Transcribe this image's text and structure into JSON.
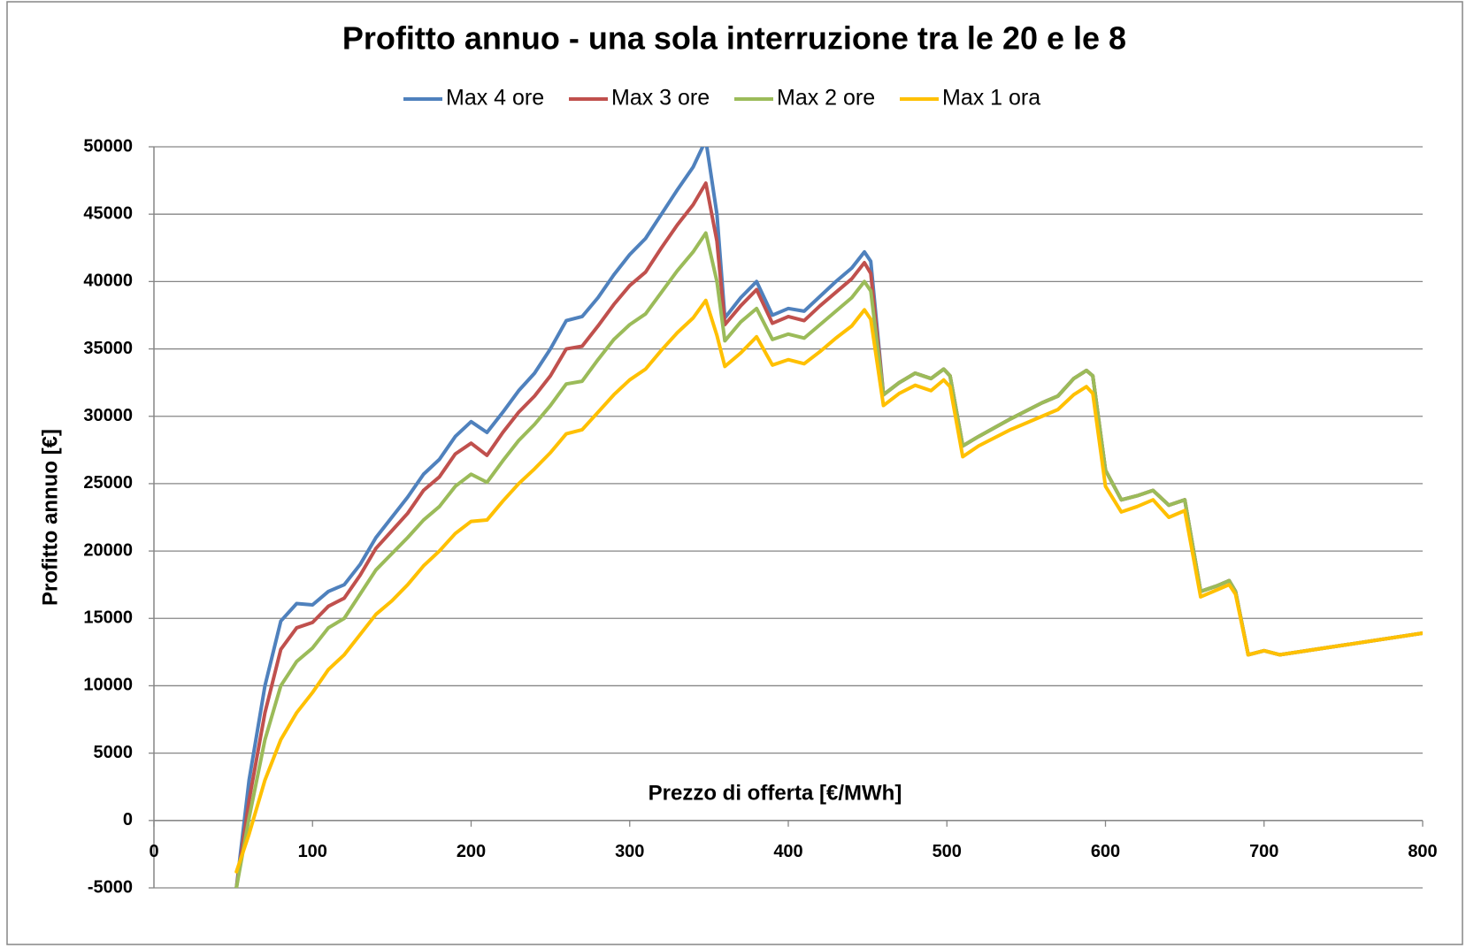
{
  "chart_data": {
    "type": "line",
    "title": "Profitto annuo - una sola interruzione tra le 20 e le 8",
    "x_label": "Prezzo di offerta [€/MWh]",
    "y_label": "Profitto annuo [€]",
    "xlim": [
      0,
      800
    ],
    "xticks": [
      0,
      100,
      200,
      300,
      400,
      500,
      600,
      700,
      800
    ],
    "ylim": [
      -5000,
      50000
    ],
    "yticks": [
      -5000,
      0,
      5000,
      10000,
      15000,
      20000,
      25000,
      30000,
      35000,
      40000,
      45000,
      50000
    ],
    "grid": true,
    "legend": "top",
    "x": [
      52,
      60,
      70,
      80,
      90,
      100,
      110,
      120,
      130,
      140,
      150,
      160,
      170,
      180,
      190,
      200,
      210,
      220,
      230,
      240,
      250,
      260,
      270,
      280,
      290,
      300,
      310,
      320,
      330,
      340,
      348,
      355,
      360,
      370,
      380,
      390,
      400,
      410,
      420,
      430,
      440,
      448,
      452,
      460,
      470,
      480,
      490,
      498,
      502,
      510,
      520,
      540,
      560,
      570,
      580,
      588,
      592,
      600,
      610,
      620,
      630,
      640,
      650,
      660,
      670,
      678,
      682,
      690,
      700,
      710,
      800
    ],
    "series": [
      {
        "name": "Max 4 ore",
        "color": "#4f81bd",
        "values": [
          -5000,
          3000,
          10000,
          14800,
          16100,
          16000,
          17000,
          17500,
          19000,
          21000,
          22500,
          24000,
          25700,
          26800,
          28500,
          29600,
          28800,
          30300,
          31900,
          33200,
          35000,
          37100,
          37400,
          38800,
          40500,
          42000,
          43200,
          45000,
          46800,
          48500,
          50500,
          45000,
          37300,
          38800,
          40000,
          37500,
          38000,
          37800,
          38900,
          40000,
          41000,
          42200,
          41500,
          31600,
          32500,
          33200,
          32800,
          33500,
          33000,
          27800,
          28500,
          29800,
          31000,
          31500,
          32800,
          33400,
          33000,
          26000,
          23800,
          24100,
          24500,
          23400,
          23800,
          17000,
          17400,
          17800,
          17000,
          12300,
          12600,
          12300,
          13900
        ]
      },
      {
        "name": "Max 3 ore",
        "color": "#c0504d",
        "values": [
          -5000,
          1500,
          8000,
          12700,
          14300,
          14700,
          15900,
          16500,
          18200,
          20200,
          21500,
          22800,
          24500,
          25500,
          27200,
          28000,
          27100,
          28800,
          30300,
          31500,
          33000,
          35000,
          35200,
          36700,
          38300,
          39700,
          40700,
          42500,
          44200,
          45700,
          47300,
          43000,
          36800,
          38200,
          39400,
          36900,
          37400,
          37100,
          38200,
          39200,
          40200,
          41400,
          40600,
          31600,
          32500,
          33200,
          32800,
          33500,
          33000,
          27800,
          28500,
          29800,
          31000,
          31500,
          32800,
          33400,
          33000,
          26000,
          23800,
          24100,
          24500,
          23400,
          23800,
          17000,
          17400,
          17800,
          17000,
          12300,
          12600,
          12300,
          13900
        ]
      },
      {
        "name": "Max 2 ore",
        "color": "#9bbb59",
        "values": [
          -5000,
          200,
          6000,
          10000,
          11800,
          12800,
          14300,
          15000,
          16800,
          18600,
          19800,
          21000,
          22300,
          23300,
          24800,
          25700,
          25100,
          26700,
          28200,
          29400,
          30800,
          32400,
          32600,
          34200,
          35700,
          36800,
          37600,
          39200,
          40800,
          42200,
          43600,
          40000,
          35600,
          37000,
          38000,
          35700,
          36100,
          35800,
          36800,
          37800,
          38800,
          40000,
          39300,
          31600,
          32500,
          33200,
          32800,
          33500,
          33000,
          27800,
          28500,
          29800,
          31000,
          31500,
          32800,
          33400,
          33000,
          26000,
          23800,
          24100,
          24500,
          23400,
          23800,
          17000,
          17400,
          17800,
          17000,
          12300,
          12600,
          12300,
          13900
        ]
      },
      {
        "name": "Max 1 ora",
        "color": "#ffc000",
        "values": [
          -3800,
          -1000,
          3000,
          6000,
          8000,
          9500,
          11200,
          12300,
          13800,
          15300,
          16300,
          17500,
          18900,
          20000,
          21300,
          22200,
          22300,
          23700,
          25000,
          26100,
          27300,
          28700,
          29000,
          30300,
          31600,
          32700,
          33500,
          34900,
          36200,
          37300,
          38600,
          36000,
          33700,
          34700,
          35900,
          33800,
          34200,
          33900,
          34800,
          35800,
          36700,
          37900,
          37200,
          30800,
          31700,
          32300,
          31900,
          32700,
          32200,
          27000,
          27800,
          29000,
          30000,
          30500,
          31600,
          32200,
          31700,
          24800,
          22900,
          23300,
          23800,
          22500,
          23000,
          16600,
          17100,
          17500,
          16800,
          12300,
          12600,
          12300,
          13900
        ]
      }
    ]
  }
}
